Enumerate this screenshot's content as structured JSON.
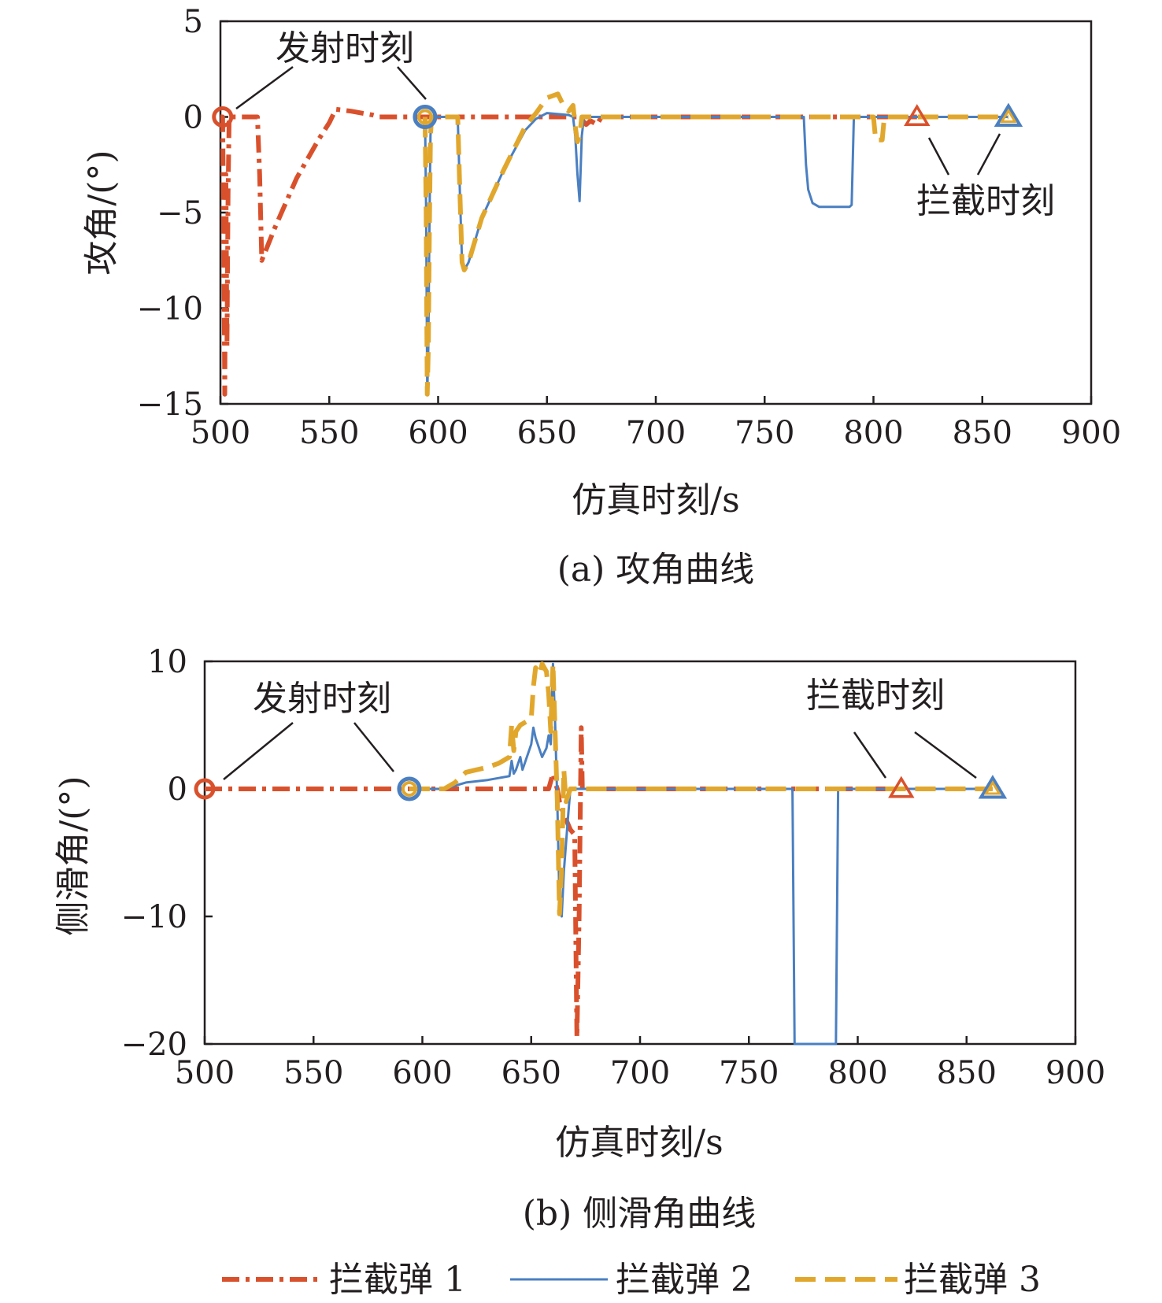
{
  "legend": [
    {
      "label": "拦截弹 1",
      "color": "#d9512c",
      "dash": "dashdot"
    },
    {
      "label": "拦截弹 2",
      "color": "#4a7fc1",
      "dash": "solid"
    },
    {
      "label": "拦截弹 3",
      "color": "#e1a72d",
      "dash": "dashed"
    }
  ],
  "chart_data": [
    {
      "type": "line",
      "caption": "(a) 攻角曲线",
      "xlabel": "仿真时刻/s",
      "ylabel": "攻角/(°)",
      "xlim": [
        500,
        900
      ],
      "ylim": [
        -15,
        5
      ],
      "xticks": [
        500,
        550,
        600,
        650,
        700,
        750,
        800,
        850,
        900
      ],
      "yticks": [
        5,
        0,
        -5,
        -10,
        -15
      ],
      "grid": false,
      "annotations": {
        "launch": "发射时刻",
        "intercept": "拦截时刻"
      },
      "series": [
        {
          "name": "拦截弹 1",
          "x": [
            500,
            501,
            501.5,
            502,
            502.5,
            503,
            503.5,
            504,
            517,
            518,
            519,
            525,
            535,
            545,
            550,
            553,
            560,
            570,
            573,
            580,
            600,
            650,
            660,
            665,
            668,
            670,
            673,
            675,
            680,
            700,
            800,
            820
          ],
          "y": [
            0,
            0,
            -6,
            -14.5,
            -3,
            -12,
            -4,
            0,
            0,
            -3,
            -7.5,
            -5.8,
            -3.2,
            -1.2,
            -0.3,
            0.4,
            0.3,
            0.1,
            0,
            0,
            0,
            0,
            0,
            0,
            -0.4,
            -0.2,
            -0.4,
            0,
            0,
            0,
            0,
            0
          ]
        },
        {
          "name": "拦截弹 2",
          "x": [
            594,
            594.5,
            595,
            595.5,
            596,
            596.5,
            597,
            609,
            610,
            611,
            612,
            614,
            620,
            630,
            640,
            645,
            650,
            660,
            662,
            663,
            664,
            665,
            666,
            667,
            670,
            700,
            768,
            769,
            770,
            772,
            775,
            780,
            785,
            789,
            790,
            791,
            800,
            850,
            862
          ],
          "y": [
            0,
            -5,
            -14.5,
            -12,
            -6,
            -1,
            0,
            0,
            -4,
            -7.6,
            -8,
            -7.6,
            -5.3,
            -2.8,
            -0.7,
            -0.1,
            0.2,
            0.1,
            0,
            -1,
            -3,
            -4.4,
            -1,
            0,
            0,
            0,
            0,
            -2.5,
            -3.8,
            -4.5,
            -4.7,
            -4.7,
            -4.7,
            -4.7,
            -4.6,
            0,
            0,
            0,
            0
          ]
        },
        {
          "name": "拦截弹 3",
          "x": [
            594,
            594.5,
            595,
            595.5,
            596,
            596.5,
            597,
            609,
            610,
            611,
            612,
            614,
            620,
            630,
            640,
            645,
            650,
            655,
            658,
            660,
            662,
            663,
            664,
            665,
            666,
            670,
            700,
            800,
            801,
            804,
            805,
            850,
            862
          ],
          "y": [
            0,
            -5,
            -14.5,
            -12,
            -6,
            -1,
            0,
            0,
            -4,
            -7.6,
            -8,
            -7.6,
            -5.3,
            -2.8,
            -0.5,
            0.2,
            1.0,
            1.2,
            0.5,
            0.3,
            0.6,
            -0.5,
            -1.3,
            -1.0,
            0,
            0,
            0,
            0,
            -1.2,
            -1.2,
            0,
            0,
            0
          ]
        }
      ]
    },
    {
      "type": "line",
      "caption": "(b) 侧滑角曲线",
      "xlabel": "仿真时刻/s",
      "ylabel": "侧滑角/(°)",
      "xlim": [
        500,
        900
      ],
      "ylim": [
        -20,
        10
      ],
      "xticks": [
        500,
        550,
        600,
        650,
        700,
        750,
        800,
        850,
        900
      ],
      "yticks": [
        10,
        0,
        -10,
        -20
      ],
      "grid": false,
      "annotations": {
        "launch": "发射时刻",
        "intercept": "拦截时刻"
      },
      "series": [
        {
          "name": "拦截弹 1",
          "x": [
            500,
            650,
            658,
            660,
            661,
            662,
            663,
            665,
            668,
            670,
            671,
            672,
            673,
            673.5,
            800,
            820
          ],
          "y": [
            0,
            0,
            0,
            1.2,
            0.5,
            0,
            -1,
            -2,
            -3.2,
            -3.6,
            -19.5,
            -10,
            4.8,
            0,
            0,
            0
          ]
        },
        {
          "name": "拦截弹 2",
          "x": [
            594,
            610,
            620,
            630,
            640,
            641,
            642,
            643,
            645,
            646,
            650,
            651,
            652,
            654,
            655,
            657,
            658,
            659,
            660,
            661,
            662,
            663,
            664,
            665,
            667,
            668,
            670,
            675,
            700,
            770,
            771,
            772,
            789,
            790,
            791,
            862
          ],
          "y": [
            0,
            0,
            0.5,
            0.7,
            1.0,
            2.2,
            1.2,
            1.5,
            2.5,
            1.5,
            3.5,
            4.8,
            4.0,
            3.0,
            2.5,
            3.2,
            4.2,
            3.5,
            9.8,
            5.0,
            -1,
            -9.0,
            -10.0,
            -6.5,
            -2,
            0,
            0,
            0,
            0,
            0,
            -20,
            -20,
            -20,
            -20,
            0,
            0
          ]
        },
        {
          "name": "拦截弹 3",
          "x": [
            594,
            610,
            615,
            620,
            625,
            630,
            635,
            640,
            641,
            642,
            643,
            645,
            650,
            651,
            652,
            654,
            655,
            657,
            658,
            659,
            660,
            662,
            663,
            664,
            665,
            666,
            668,
            670,
            700,
            850,
            862
          ],
          "y": [
            0,
            0,
            0.5,
            1.3,
            1.5,
            1.7,
            2.0,
            2.5,
            5.0,
            3.0,
            4.5,
            5.0,
            5.5,
            8.0,
            9.5,
            9.0,
            9.8,
            9.2,
            7.5,
            4.5,
            9.8,
            -1,
            -9.8,
            -6,
            1.5,
            -1,
            0,
            0,
            0,
            0,
            0
          ]
        }
      ]
    }
  ]
}
